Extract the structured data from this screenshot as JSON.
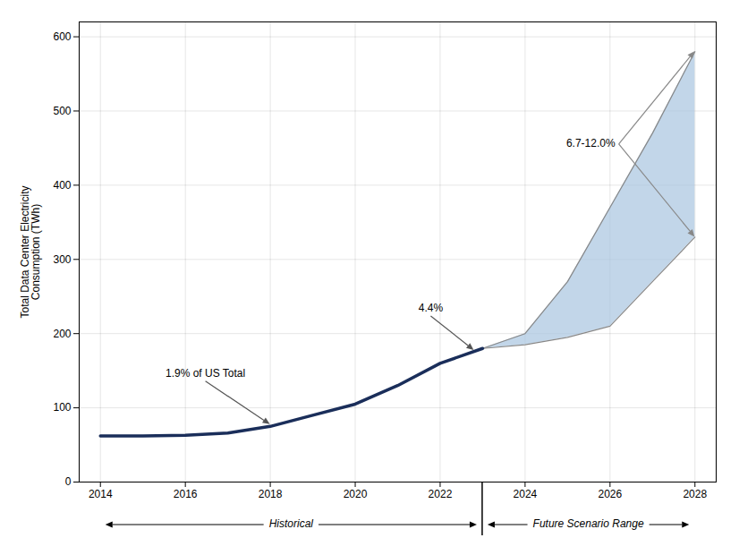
{
  "chart_data": {
    "type": "line",
    "ylabel": "Total Data Center Electricity\nConsumption (TWh)",
    "xlim": [
      2013.5,
      2028.5
    ],
    "ylim": [
      0,
      620
    ],
    "xticks": [
      2014,
      2016,
      2018,
      2020,
      2022,
      2024,
      2026,
      2028
    ],
    "yticks": [
      0,
      100,
      200,
      300,
      400,
      500,
      600
    ],
    "grid": true,
    "series": [
      {
        "name": "Historical",
        "type": "line",
        "color": "#1a2e5a",
        "x": [
          2014,
          2015,
          2016,
          2017,
          2018,
          2019,
          2020,
          2021,
          2022,
          2023
        ],
        "values": [
          62,
          62,
          63,
          66,
          75,
          90,
          105,
          130,
          160,
          180
        ]
      },
      {
        "name": "Future Scenario Range",
        "type": "area",
        "color": "#a8c4e0",
        "x": [
          2023,
          2024,
          2025,
          2026,
          2027,
          2028
        ],
        "low": [
          180,
          185,
          195,
          210,
          270,
          330
        ],
        "high": [
          180,
          200,
          270,
          370,
          470,
          580
        ]
      }
    ],
    "annotations": [
      {
        "text": "1.9% of US Total",
        "targets": [
          {
            "x": 2018,
            "y": 75
          }
        ]
      },
      {
        "text": "4.4%",
        "targets": [
          {
            "x": 2022.8,
            "y": 175
          }
        ]
      },
      {
        "text": "6.7-12.0%",
        "targets": [
          {
            "x": 2028,
            "y": 580
          },
          {
            "x": 2028,
            "y": 330
          }
        ]
      }
    ]
  }
}
